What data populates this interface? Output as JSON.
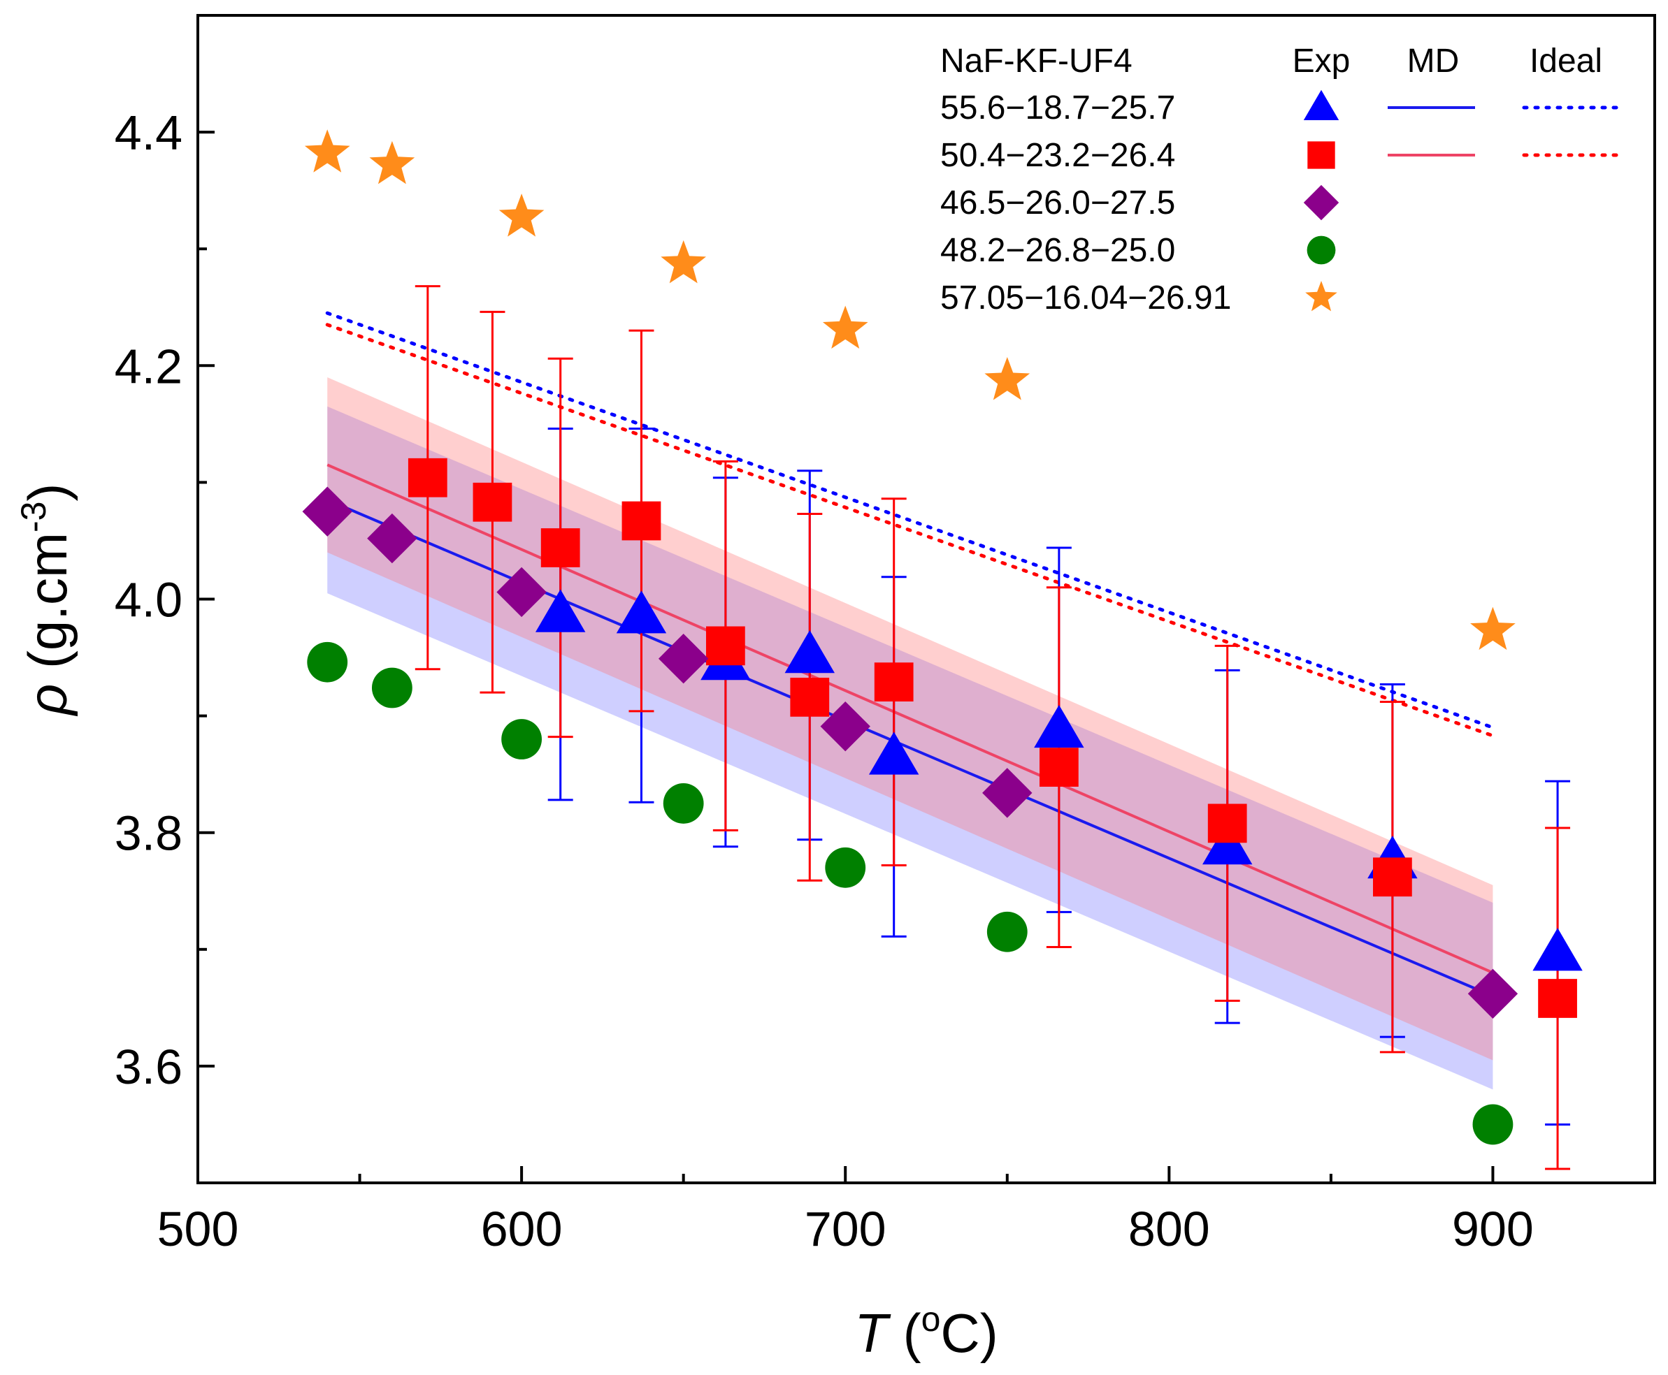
{
  "chart_data": {
    "type": "scatter",
    "xlabel_symbol": "T",
    "xlabel_unit_open": " (",
    "xlabel_unit_sup": "o",
    "xlabel_unit_close": "C)",
    "ylabel_symbol": "ρ",
    "ylabel_unit_open": " (g.cm",
    "ylabel_unit_sup": "-3",
    "ylabel_unit_close": ")",
    "xlim": [
      500,
      950
    ],
    "ylim": [
      3.5,
      4.5
    ],
    "x_ticks": [
      500,
      600,
      700,
      800,
      900
    ],
    "x_tick_labels": [
      "500",
      "600",
      "700",
      "800",
      "900"
    ],
    "y_ticks": [
      3.6,
      3.8,
      4.0,
      4.2,
      4.4
    ],
    "y_tick_labels": [
      "3.6",
      "3.8",
      "4.0",
      "4.2",
      "4.4"
    ],
    "legend": {
      "position": "top-right",
      "header_composition": "NaF-KF-UF4",
      "header_exp": "Exp",
      "header_md": "MD",
      "header_ideal": "Ideal"
    },
    "series": [
      {
        "name": "55.6−18.7−25.7",
        "marker": "triangle",
        "color": "#0000ff",
        "x": [
          612,
          637,
          663,
          689,
          715,
          766,
          818,
          869,
          920
        ],
        "y": [
          3.987,
          3.986,
          3.946,
          3.952,
          3.865,
          3.888,
          3.788,
          3.776,
          3.697
        ],
        "yerr": [
          0.159,
          0.16,
          0.158,
          0.158,
          0.154,
          0.156,
          0.151,
          0.151,
          0.147
        ],
        "md_line": {
          "x": [
            540,
            900
          ],
          "y": [
            4.085,
            3.66
          ],
          "band": 0.08
        },
        "ideal_line": {
          "x": [
            540,
            900
          ],
          "y": [
            4.245,
            3.89
          ]
        }
      },
      {
        "name": "50.4−23.2−26.4",
        "marker": "square",
        "color": "#ff0000",
        "x": [
          571,
          591,
          612,
          637,
          663,
          689,
          715,
          766,
          818,
          869,
          920
        ],
        "y": [
          4.104,
          4.083,
          4.044,
          4.067,
          3.96,
          3.916,
          3.929,
          3.856,
          3.808,
          3.762,
          3.658
        ],
        "yerr": [
          0.164,
          0.163,
          0.162,
          0.163,
          0.158,
          0.157,
          0.157,
          0.154,
          0.152,
          0.15,
          0.146
        ],
        "md_line": {
          "x": [
            540,
            900
          ],
          "y": [
            4.115,
            3.68
          ],
          "band": 0.075
        },
        "ideal_line": {
          "x": [
            540,
            900
          ],
          "y": [
            4.235,
            3.883
          ]
        }
      },
      {
        "name": "46.5−26.0−27.5",
        "marker": "diamond",
        "color": "#8b008b",
        "x": [
          540,
          560,
          600,
          650,
          700,
          750,
          900
        ],
        "y": [
          4.075,
          4.052,
          4.006,
          3.949,
          3.891,
          3.834,
          3.662
        ]
      },
      {
        "name": "48.2−26.8−25.0",
        "marker": "circle",
        "color": "#008000",
        "x": [
          540,
          560,
          600,
          650,
          700,
          750,
          900
        ],
        "y": [
          3.946,
          3.924,
          3.88,
          3.825,
          3.77,
          3.715,
          3.55
        ]
      },
      {
        "name": "57.05−16.04−26.91",
        "marker": "star",
        "color": "#ff8c1a",
        "x": [
          540,
          560,
          600,
          650,
          700,
          750,
          900
        ],
        "y": [
          4.382,
          4.372,
          4.327,
          4.287,
          4.231,
          4.187,
          3.973
        ]
      }
    ]
  }
}
